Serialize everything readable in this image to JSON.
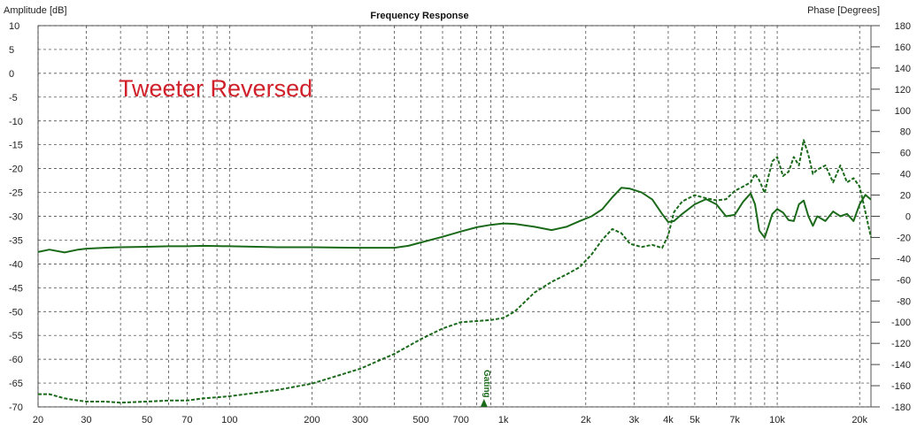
{
  "chart_data": {
    "type": "line",
    "title": "Frequency Response",
    "ylabel": "Amplitude [dB]",
    "y2label": "Phase [Degrees]",
    "annotation": "Tweeter Reversed",
    "marker_label": "Gating",
    "marker_x": 850,
    "xscale": "log",
    "xlim": [
      20,
      22000
    ],
    "ylim": [
      -70,
      10
    ],
    "y2lim": [
      -180,
      180
    ],
    "grid": true,
    "yticks": [
      "10",
      "5",
      "0",
      "-5",
      "-10",
      "-15",
      "-20",
      "-25",
      "-30",
      "-35",
      "-40",
      "-45",
      "-50",
      "-55",
      "-60",
      "-65",
      "-70"
    ],
    "y2ticks": [
      "180",
      "160",
      "140",
      "120",
      "100",
      "80",
      "60",
      "40",
      "20",
      "0",
      "-20",
      "-40",
      "-60",
      "-80",
      "-100",
      "-120",
      "-140",
      "-160",
      "-180"
    ],
    "xticks": [
      {
        "v": 20,
        "l": "20"
      },
      {
        "v": 30,
        "l": "30"
      },
      {
        "v": 50,
        "l": "50"
      },
      {
        "v": 70,
        "l": "70"
      },
      {
        "v": 100,
        "l": "100"
      },
      {
        "v": 200,
        "l": "200"
      },
      {
        "v": 300,
        "l": "300"
      },
      {
        "v": 500,
        "l": "500"
      },
      {
        "v": 700,
        "l": "700"
      },
      {
        "v": 1000,
        "l": "1k"
      },
      {
        "v": 2000,
        "l": "2k"
      },
      {
        "v": 3000,
        "l": "3k"
      },
      {
        "v": 4000,
        "l": "4k"
      },
      {
        "v": 5000,
        "l": "5k"
      },
      {
        "v": 7000,
        "l": "7k"
      },
      {
        "v": 10000,
        "l": "10k"
      },
      {
        "v": 20000,
        "l": "20k"
      }
    ],
    "series": [
      {
        "axis": "left",
        "style": "solid",
        "color": "#1a6a1a",
        "x": [
          20,
          22,
          25,
          28,
          30,
          35,
          40,
          50,
          60,
          70,
          80,
          100,
          150,
          200,
          300,
          400,
          450,
          500,
          600,
          700,
          800,
          900,
          1000,
          1100,
          1300,
          1500,
          1700,
          1900,
          2100,
          2300,
          2500,
          2700,
          2900,
          3200,
          3500,
          3800,
          4000,
          4200,
          4500,
          5000,
          5500,
          6000,
          6500,
          7000,
          7500,
          8000,
          8300,
          8600,
          9000,
          9300,
          9600,
          10000,
          10500,
          11000,
          11500,
          12000,
          12500,
          13000,
          13500,
          14000,
          15000,
          16000,
          17000,
          18000,
          19000,
          20000,
          21000,
          22000
        ],
        "y": [
          -37.5,
          -37.0,
          -37.6,
          -37.0,
          -36.8,
          -36.6,
          -36.5,
          -36.4,
          -36.3,
          -36.3,
          -36.2,
          -36.3,
          -36.5,
          -36.5,
          -36.6,
          -36.6,
          -36.2,
          -35.5,
          -34.3,
          -33.2,
          -32.3,
          -31.8,
          -31.5,
          -31.6,
          -32.2,
          -32.9,
          -32.2,
          -31.0,
          -30.0,
          -28.5,
          -26.0,
          -24.0,
          -24.2,
          -25.0,
          -26.5,
          -29.5,
          -31.2,
          -31.0,
          -29.5,
          -27.5,
          -26.4,
          -27.5,
          -30.0,
          -29.7,
          -27.0,
          -25.2,
          -27.5,
          -33.0,
          -34.5,
          -32.0,
          -29.5,
          -28.5,
          -29.2,
          -30.8,
          -31.0,
          -27.5,
          -26.7,
          -30.0,
          -32.0,
          -30.0,
          -31.0,
          -29.0,
          -30.0,
          -29.5,
          -31.0,
          -27.5,
          -25.5,
          -26.5
        ]
      },
      {
        "axis": "right",
        "style": "dashed",
        "color": "#1a6a1a",
        "x": [
          20,
          22,
          25,
          28,
          30,
          35,
          40,
          50,
          60,
          70,
          80,
          100,
          150,
          200,
          300,
          400,
          500,
          600,
          700,
          800,
          900,
          1000,
          1100,
          1300,
          1500,
          1700,
          1900,
          2100,
          2300,
          2500,
          2700,
          2900,
          3200,
          3500,
          3800,
          4000,
          4200,
          4500,
          5000,
          5500,
          6000,
          6500,
          7000,
          7500,
          8000,
          8300,
          8600,
          9000,
          9300,
          9600,
          10000,
          10500,
          11000,
          11500,
          12000,
          12500,
          13000,
          13500,
          14000,
          15000,
          16000,
          17000,
          18000,
          19000,
          20000,
          21000,
          22000
        ],
        "y": [
          -168,
          -168,
          -172,
          -174,
          -175,
          -175,
          -176,
          -175,
          -174,
          -174,
          -172,
          -170,
          -164,
          -158,
          -144,
          -130,
          -116,
          -106,
          -100,
          -99,
          -98,
          -96,
          -90,
          -72,
          -62,
          -55,
          -48,
          -36,
          -22,
          -12,
          -16,
          -26,
          -29,
          -27,
          -30,
          -18,
          4,
          14,
          20,
          17,
          15,
          16,
          24,
          28,
          32,
          40,
          34,
          22,
          38,
          52,
          56,
          38,
          42,
          56,
          48,
          72,
          58,
          40,
          44,
          48,
          32,
          48,
          32,
          36,
          28,
          4,
          -20
        ]
      }
    ]
  }
}
